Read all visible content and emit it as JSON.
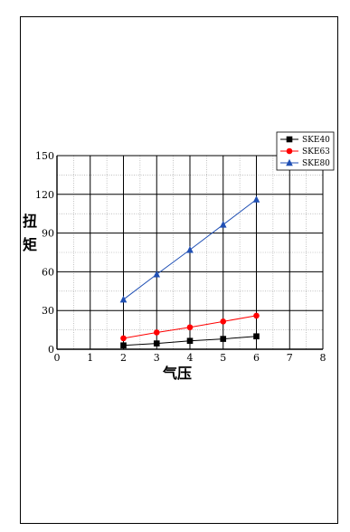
{
  "chart_data": {
    "type": "line",
    "title": "",
    "xlabel": "气压",
    "ylabel_chars": [
      "扭",
      "矩"
    ],
    "xlim": [
      0,
      8
    ],
    "ylim": [
      0,
      150
    ],
    "xticks": [
      0,
      1,
      2,
      3,
      4,
      5,
      6,
      7,
      8
    ],
    "yticks": [
      0,
      30,
      60,
      90,
      120,
      150
    ],
    "grid": true,
    "legend_position": "top-right",
    "series": [
      {
        "name": "SKE40",
        "color": "#000000",
        "marker": "square",
        "x": [
          2,
          3,
          4,
          5,
          6
        ],
        "y": [
          3,
          4.5,
          6.5,
          8,
          10
        ]
      },
      {
        "name": "SKE63",
        "color": "#ff0000",
        "marker": "circle",
        "x": [
          2,
          3,
          4,
          5,
          6
        ],
        "y": [
          8.5,
          13,
          17,
          21.5,
          26
        ]
      },
      {
        "name": "SKE80",
        "color": "#1f4fb4",
        "marker": "triangle",
        "x": [
          2,
          3,
          4,
          5,
          6
        ],
        "y": [
          38.5,
          58,
          77,
          96.5,
          116
        ]
      }
    ]
  }
}
